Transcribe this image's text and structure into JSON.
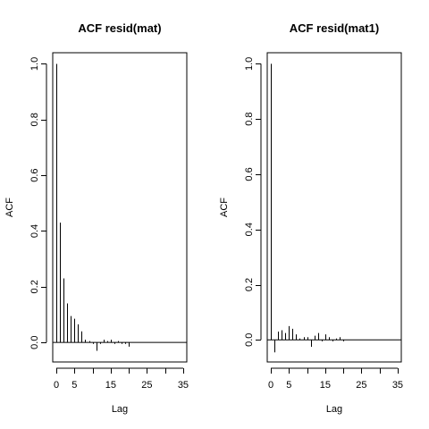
{
  "chart_data": [
    {
      "type": "bar",
      "title": "ACF resid(mat)",
      "xlabel": "Lag",
      "ylabel": "ACF",
      "xlim": [
        -1,
        36
      ],
      "ylim": [
        -0.07,
        1.04
      ],
      "x_ticks": [
        0,
        5,
        15,
        25,
        35
      ],
      "y_ticks": [
        "0.0",
        "0.2",
        "0.4",
        "0.6",
        "0.8",
        "1.0"
      ],
      "y_tick_values": [
        0,
        0.2,
        0.4,
        0.6,
        0.8,
        1.0
      ],
      "lags": [
        0,
        1,
        2,
        3,
        4,
        5,
        6,
        7,
        8,
        9,
        10,
        11,
        12,
        13,
        14,
        15,
        16,
        17,
        18,
        19,
        20
      ],
      "values": [
        1.0,
        0.43,
        0.23,
        0.14,
        0.095,
        0.085,
        0.065,
        0.04,
        0.01,
        0.005,
        -0.005,
        -0.03,
        -0.005,
        0.01,
        0.005,
        0.01,
        -0.005,
        0.005,
        -0.005,
        -0.005,
        -0.015
      ]
    },
    {
      "type": "bar",
      "title": "ACF resid(mat1)",
      "xlabel": "Lag",
      "ylabel": "ACF",
      "xlim": [
        -1,
        36
      ],
      "ylim": [
        -0.08,
        1.04
      ],
      "x_ticks": [
        0,
        5,
        15,
        25,
        35
      ],
      "y_ticks": [
        "0.0",
        "0.2",
        "0.4",
        "0.6",
        "0.8",
        "1.0"
      ],
      "y_tick_values": [
        0,
        0.2,
        0.4,
        0.6,
        0.8,
        1.0
      ],
      "lags": [
        0,
        1,
        2,
        3,
        4,
        5,
        6,
        7,
        8,
        9,
        10,
        11,
        12,
        13,
        14,
        15,
        16,
        17,
        18,
        19,
        20
      ],
      "values": [
        1.0,
        -0.045,
        0.03,
        0.035,
        0.025,
        0.05,
        0.04,
        0.02,
        0.005,
        0.01,
        0.01,
        -0.025,
        0.015,
        0.025,
        -0.005,
        0.02,
        0.01,
        -0.005,
        0.005,
        0.01,
        -0.005
      ]
    }
  ]
}
